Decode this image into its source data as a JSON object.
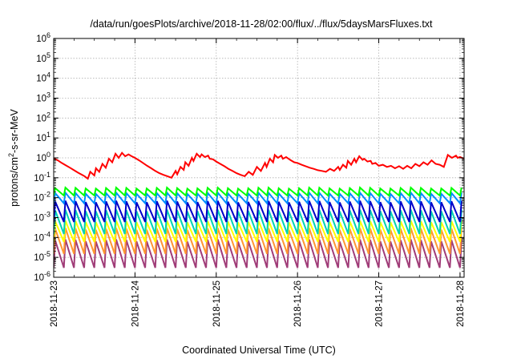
{
  "chart_data": {
    "type": "line",
    "title": "/data/run/goesPlots/archive/2018-11-28/02:00/flux/../flux/5daysMarsFluxes.txt",
    "xlabel": "Coordinated Universal Time (UTC)",
    "ylabel": "protons/cm²-s-sr-MeV",
    "yscale": "log",
    "ylim": [
      1e-06,
      1000000.0
    ],
    "xlim": [
      0,
      5.05
    ],
    "grid": true,
    "x_ticks": [
      {
        "pos": 0,
        "label": "2018-11-23"
      },
      {
        "pos": 1,
        "label": "2018-11-24"
      },
      {
        "pos": 2,
        "label": "2018-11-25"
      },
      {
        "pos": 3,
        "label": "2018-11-26"
      },
      {
        "pos": 4,
        "label": "2018-11-27"
      },
      {
        "pos": 5,
        "label": "2018-11-28"
      }
    ],
    "y_ticks": [
      {
        "exp": -6,
        "label": "10-6"
      },
      {
        "exp": -5,
        "label": "10-5"
      },
      {
        "exp": -4,
        "label": "10-4"
      },
      {
        "exp": -3,
        "label": "10-3"
      },
      {
        "exp": -2,
        "label": "10-2"
      },
      {
        "exp": -1,
        "label": "10-1"
      },
      {
        "exp": 0,
        "label": "100"
      },
      {
        "exp": 1,
        "label": "101"
      },
      {
        "exp": 2,
        "label": "102"
      },
      {
        "exp": 3,
        "label": "103"
      },
      {
        "exp": 4,
        "label": "104"
      },
      {
        "exp": 5,
        "label": "105"
      },
      {
        "exp": 6,
        "label": "106"
      }
    ],
    "series": [
      {
        "color": "#ff0000",
        "width": 2,
        "x": [
          0,
          0.05,
          0.1,
          0.15,
          0.2,
          0.25,
          0.3,
          0.35,
          0.38,
          0.42,
          0.45,
          0.5,
          0.52,
          0.56,
          0.6,
          0.64,
          0.68,
          0.72,
          0.76,
          0.8,
          0.84,
          0.88,
          0.92,
          0.96,
          1.0,
          1.05,
          1.1,
          1.15,
          1.2,
          1.25,
          1.3,
          1.35,
          1.4,
          1.45,
          1.5,
          1.52,
          1.56,
          1.6,
          1.62,
          1.66,
          1.7,
          1.72,
          1.76,
          1.8,
          1.82,
          1.86,
          1.9,
          1.92,
          1.96,
          2.0,
          2.05,
          2.1,
          2.15,
          2.2,
          2.25,
          2.3,
          2.35,
          2.4,
          2.45,
          2.5,
          2.55,
          2.6,
          2.62,
          2.66,
          2.7,
          2.72,
          2.76,
          2.8,
          2.82,
          2.86,
          2.9,
          2.92,
          2.96,
          3.0,
          3.05,
          3.1,
          3.15,
          3.2,
          3.25,
          3.3,
          3.35,
          3.4,
          3.45,
          3.5,
          3.52,
          3.56,
          3.6,
          3.62,
          3.66,
          3.7,
          3.72,
          3.76,
          3.8,
          3.82,
          3.86,
          3.9,
          3.92,
          3.96,
          4.0,
          4.05,
          4.1,
          4.15,
          4.2,
          4.25,
          4.3,
          4.35,
          4.4,
          4.45,
          4.5,
          4.55,
          4.6,
          4.65,
          4.7,
          4.75,
          4.8,
          4.85,
          4.9,
          4.95,
          4.97,
          5.0,
          5.05
        ],
        "y": [
          0.95,
          0.75,
          0.55,
          0.42,
          0.32,
          0.24,
          0.18,
          0.14,
          0.12,
          0.09,
          0.2,
          0.13,
          0.3,
          0.2,
          0.5,
          0.32,
          0.9,
          0.6,
          1.6,
          1.0,
          1.8,
          1.2,
          1.5,
          1.2,
          1.0,
          0.75,
          0.55,
          0.4,
          0.3,
          0.22,
          0.17,
          0.14,
          0.12,
          0.1,
          0.22,
          0.15,
          0.35,
          0.25,
          0.6,
          0.4,
          1.0,
          0.7,
          1.6,
          1.1,
          1.5,
          1.1,
          1.3,
          0.9,
          0.85,
          0.65,
          0.5,
          0.38,
          0.28,
          0.22,
          0.17,
          0.14,
          0.12,
          0.2,
          0.14,
          0.35,
          0.22,
          0.55,
          0.35,
          0.9,
          0.6,
          1.4,
          1.0,
          1.3,
          0.9,
          1.1,
          0.85,
          0.75,
          0.6,
          0.55,
          0.45,
          0.38,
          0.32,
          0.28,
          0.24,
          0.22,
          0.2,
          0.28,
          0.22,
          0.35,
          0.25,
          0.45,
          0.32,
          0.7,
          0.45,
          0.9,
          0.6,
          1.2,
          0.8,
          0.9,
          0.65,
          0.7,
          0.5,
          0.55,
          0.4,
          0.45,
          0.35,
          0.4,
          0.3,
          0.38,
          0.28,
          0.4,
          0.3,
          0.5,
          0.38,
          0.6,
          0.45,
          0.75,
          0.5,
          0.45,
          0.35,
          1.4,
          1.0,
          1.3,
          1.0,
          1.1,
          0.9
        ]
      },
      {
        "color": "#00ff00",
        "width": 2,
        "base": 0.02,
        "amp": 0.012
      },
      {
        "color": "#008cff",
        "width": 2,
        "base": 0.01,
        "amp": 0.008
      },
      {
        "color": "#0000c8",
        "width": 2,
        "base": 0.003,
        "amp": 0.004
      },
      {
        "color": "#00d2b4",
        "width": 2,
        "base": 0.001,
        "amp": 0.0015
      },
      {
        "color": "#ffff00",
        "width": 2,
        "base": 0.0003,
        "amp": 0.0004
      },
      {
        "color": "#ff9632",
        "width": 2,
        "base": 0.0001,
        "amp": 0.0002
      },
      {
        "color": "#a03c78",
        "width": 2,
        "base": 2e-05,
        "amp": 6e-05
      }
    ]
  }
}
